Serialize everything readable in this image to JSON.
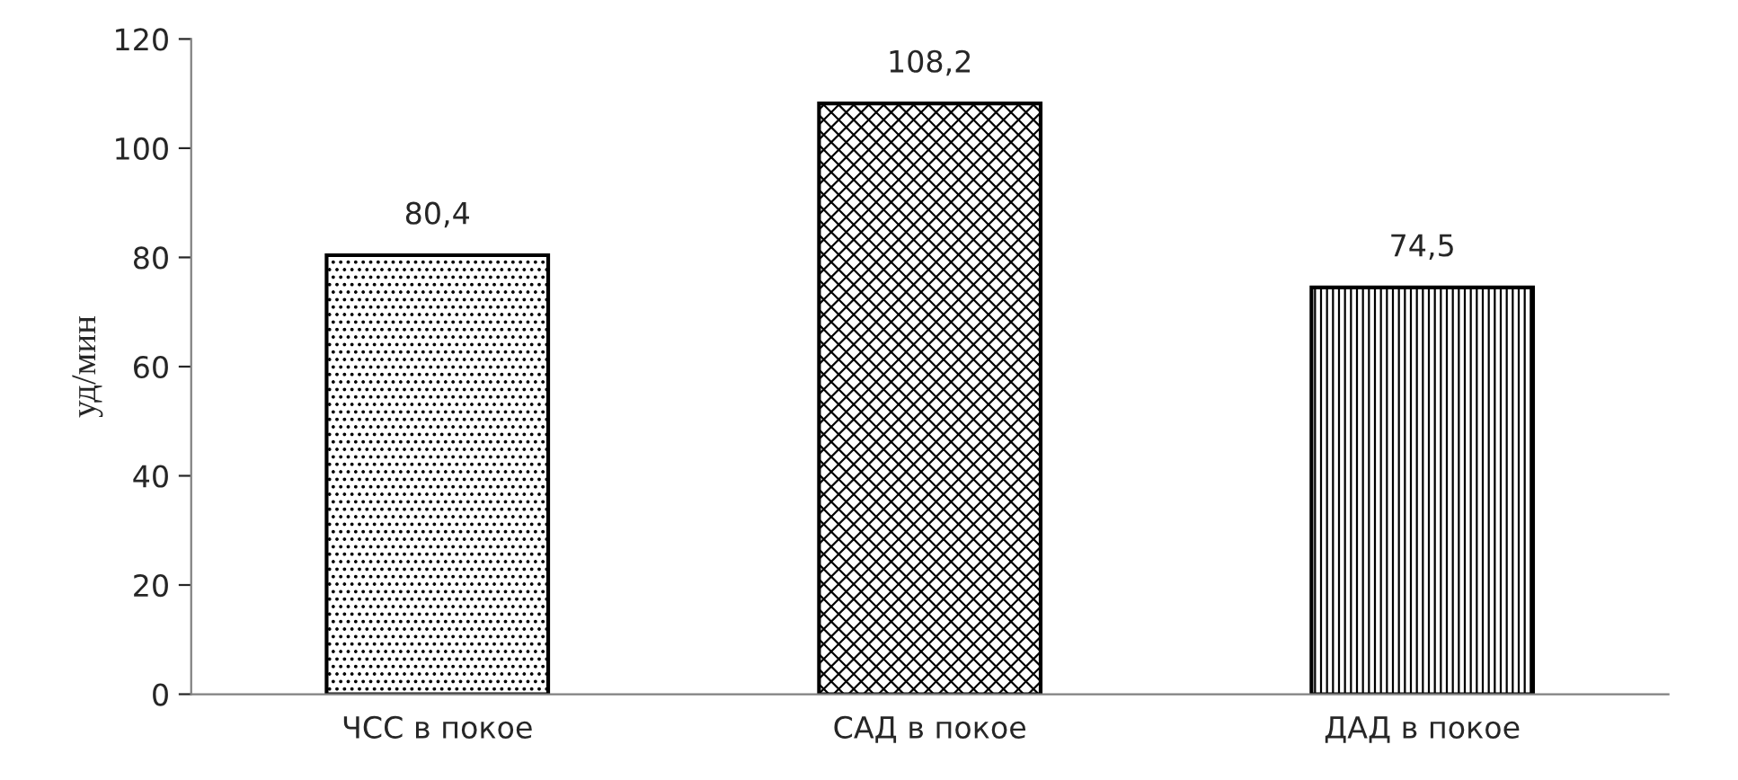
{
  "chart_data": {
    "type": "bar",
    "ylabel": "уд/мин",
    "categories": [
      "ЧСС в покое",
      "САД в покое",
      "ДАД в покое"
    ],
    "values": [
      80.4,
      108.2,
      74.5
    ],
    "value_labels": [
      "80,4",
      "108,2",
      "74,5"
    ],
    "ylim": [
      0,
      120
    ],
    "yticks": [
      0,
      20,
      40,
      60,
      80,
      100,
      120
    ],
    "grid": false,
    "legend": false
  }
}
